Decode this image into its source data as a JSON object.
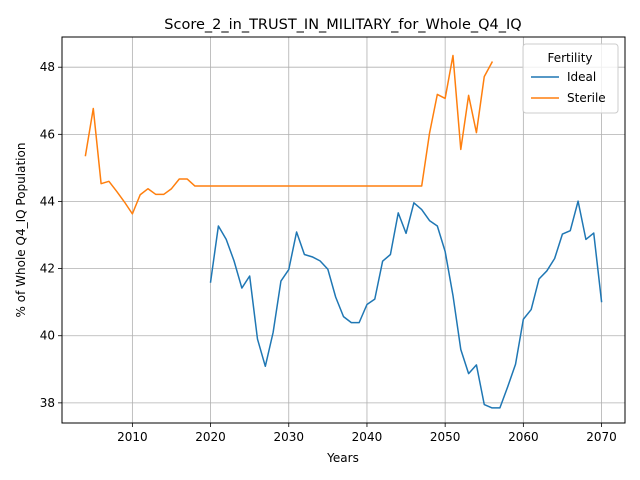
{
  "chart_data": {
    "type": "line",
    "title": "Score_2_in_TRUST_IN_MILITARY_for_Whole_Q4_IQ",
    "xlabel": "Years",
    "ylabel": "% of Whole Q4_IQ Population",
    "xlim": [
      2001,
      2073
    ],
    "ylim": [
      37.4,
      48.9
    ],
    "xticks": [
      2010,
      2020,
      2030,
      2040,
      2050,
      2060,
      2070
    ],
    "yticks": [
      38,
      40,
      42,
      44,
      46,
      48
    ],
    "grid": true,
    "legend": {
      "title": "Fertility",
      "placement": "top-right"
    },
    "series": [
      {
        "name": "Ideal",
        "color": "#1f77b4",
        "x": [
          2020,
          2021,
          2022,
          2023,
          2024,
          2025,
          2026,
          2027,
          2028,
          2029,
          2030,
          2031,
          2032,
          2033,
          2034,
          2035,
          2036,
          2037,
          2038,
          2039,
          2040,
          2041,
          2042,
          2043,
          2044,
          2045,
          2046,
          2047,
          2048,
          2049,
          2050,
          2051,
          2052,
          2053,
          2054,
          2055,
          2056,
          2057,
          2058,
          2059,
          2060,
          2061,
          2062,
          2063,
          2064,
          2065,
          2066,
          2067,
          2068,
          2069,
          2070
        ],
        "y": [
          41.6,
          43.27,
          42.87,
          42.23,
          41.42,
          41.78,
          39.9,
          39.09,
          40.1,
          41.63,
          41.97,
          43.09,
          42.42,
          42.35,
          42.23,
          41.98,
          41.15,
          40.57,
          40.39,
          40.39,
          40.93,
          41.09,
          42.22,
          42.42,
          43.66,
          43.05,
          43.96,
          43.76,
          43.43,
          43.27,
          42.51,
          41.2,
          39.59,
          38.87,
          39.13,
          37.95,
          37.85,
          37.85,
          38.48,
          39.15,
          40.49,
          40.78,
          41.69,
          41.93,
          42.3,
          43.03,
          43.13,
          44.01,
          42.87,
          43.06,
          41.02
        ]
      },
      {
        "name": "Sterile",
        "color": "#ff7f0e",
        "x": [
          2004,
          2005,
          2006,
          2007,
          2008,
          2009,
          2010,
          2011,
          2012,
          2013,
          2014,
          2015,
          2016,
          2017,
          2018,
          2019,
          2020,
          2021,
          2022,
          2023,
          2024,
          2025,
          2026,
          2027,
          2028,
          2029,
          2030,
          2031,
          2032,
          2033,
          2034,
          2035,
          2036,
          2037,
          2038,
          2039,
          2040,
          2041,
          2042,
          2043,
          2044,
          2045,
          2046,
          2047,
          2048,
          2049,
          2050,
          2051,
          2052,
          2053,
          2054,
          2055,
          2056
        ],
        "y": [
          45.37,
          46.77,
          44.53,
          44.6,
          44.3,
          43.98,
          43.63,
          44.2,
          44.38,
          44.21,
          44.21,
          44.38,
          44.67,
          44.67,
          44.46,
          44.46,
          44.46,
          44.46,
          44.46,
          44.46,
          44.46,
          44.46,
          44.46,
          44.46,
          44.46,
          44.46,
          44.46,
          44.46,
          44.46,
          44.46,
          44.46,
          44.46,
          44.46,
          44.46,
          44.46,
          44.46,
          44.46,
          44.46,
          44.46,
          44.46,
          44.46,
          44.46,
          44.46,
          44.46,
          46.03,
          47.19,
          47.07,
          48.35,
          45.55,
          47.16,
          46.05,
          47.72,
          48.15
        ]
      }
    ]
  }
}
